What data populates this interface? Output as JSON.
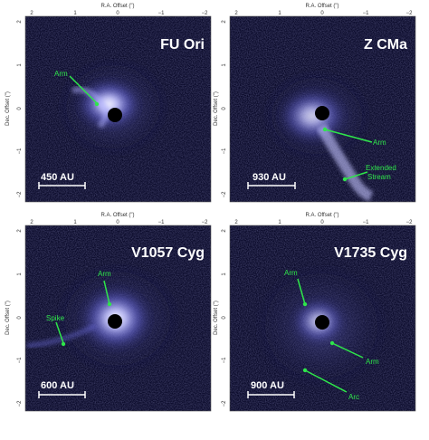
{
  "axes": {
    "x_label": "R.A. Offset (\")",
    "y_label": "Dec. Offset (\")",
    "x_ticks": [
      "2",
      "1",
      "0",
      "−1",
      "−2"
    ],
    "y_ticks": [
      "2",
      "1",
      "0",
      "−1",
      "−2"
    ]
  },
  "panels": [
    {
      "id": "fu-ori",
      "name": "FU Ori",
      "scale_label": "450 AU",
      "annotations": [
        {
          "text": "Arm"
        }
      ]
    },
    {
      "id": "z-cma",
      "name": "Z CMa",
      "scale_label": "930 AU",
      "annotations": [
        {
          "text": "Arm"
        },
        {
          "text": "Extended\nStream"
        }
      ]
    },
    {
      "id": "v1057-cyg",
      "name": "V1057 Cyg",
      "scale_label": "600 AU",
      "annotations": [
        {
          "text": "Arm"
        },
        {
          "text": "Spike"
        }
      ]
    },
    {
      "id": "v1735-cyg",
      "name": "V1735 Cyg",
      "scale_label": "900 AU",
      "annotations": [
        {
          "text": "Arm"
        },
        {
          "text": "Arm"
        },
        {
          "text": "Arc"
        }
      ]
    }
  ],
  "colors": {
    "background": "#0a0a2a",
    "nebula": "#8c8cff",
    "annotation": "#2ee64a"
  }
}
